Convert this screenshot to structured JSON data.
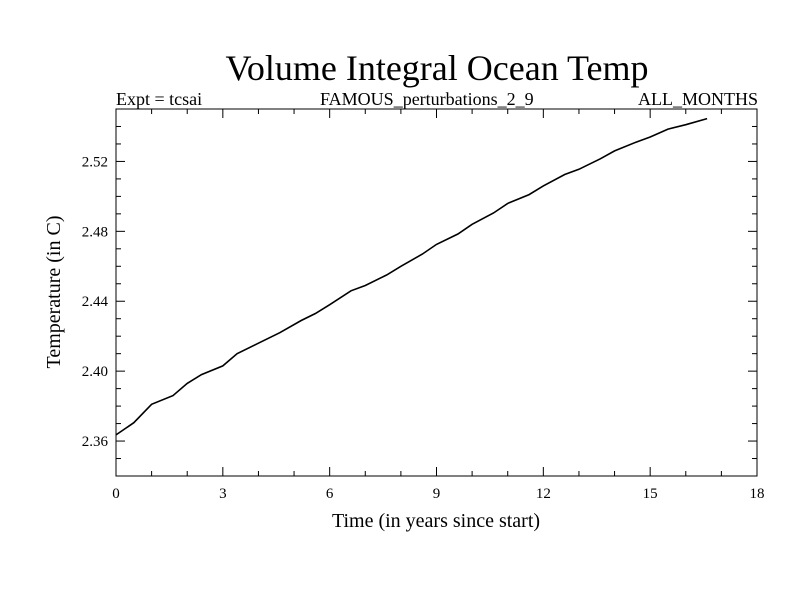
{
  "chart_data": {
    "type": "line",
    "title": "Volume Integral Ocean Temp",
    "subtitle_left": "Expt = tcsai",
    "subtitle_center": "FAMOUS_perturbations_2_9",
    "subtitle_right": "ALL_MONTHS",
    "xlabel": "Time (in years since start)",
    "ylabel": "Temperature (in C)",
    "xlim": [
      0,
      18
    ],
    "ylim": [
      2.34,
      2.55
    ],
    "xticks": [
      0,
      3,
      6,
      9,
      12,
      15,
      18
    ],
    "xtick_labels": [
      "0",
      "3",
      "6",
      "9",
      "12",
      "15",
      "18"
    ],
    "yticks": [
      2.36,
      2.4,
      2.44,
      2.48,
      2.52
    ],
    "ytick_labels": [
      "2.36",
      "2.40",
      "2.44",
      "2.48",
      "2.52"
    ],
    "grid": false,
    "series": [
      {
        "name": "Volume Integral Ocean Temp",
        "x": [
          0,
          0.5,
          1.0,
          1.6,
          2.0,
          2.4,
          3.0,
          3.4,
          4.0,
          4.6,
          5.2,
          5.6,
          6.0,
          6.6,
          7.0,
          7.6,
          8.0,
          8.6,
          9.0,
          9.6,
          10.0,
          10.6,
          11.0,
          11.6,
          12.0,
          12.6,
          13.0,
          13.6,
          14.0,
          14.6,
          15.0,
          15.5,
          16.0,
          16.6
        ],
        "values": [
          2.3635,
          2.3705,
          2.381,
          2.386,
          2.393,
          2.398,
          2.403,
          2.41,
          2.416,
          2.422,
          2.429,
          2.433,
          2.438,
          2.446,
          2.449,
          2.455,
          2.46,
          2.467,
          2.4725,
          2.4785,
          2.484,
          2.4905,
          2.496,
          2.501,
          2.506,
          2.5125,
          2.5155,
          2.5215,
          2.526,
          2.531,
          2.534,
          2.5385,
          2.541,
          2.5445
        ]
      }
    ]
  }
}
